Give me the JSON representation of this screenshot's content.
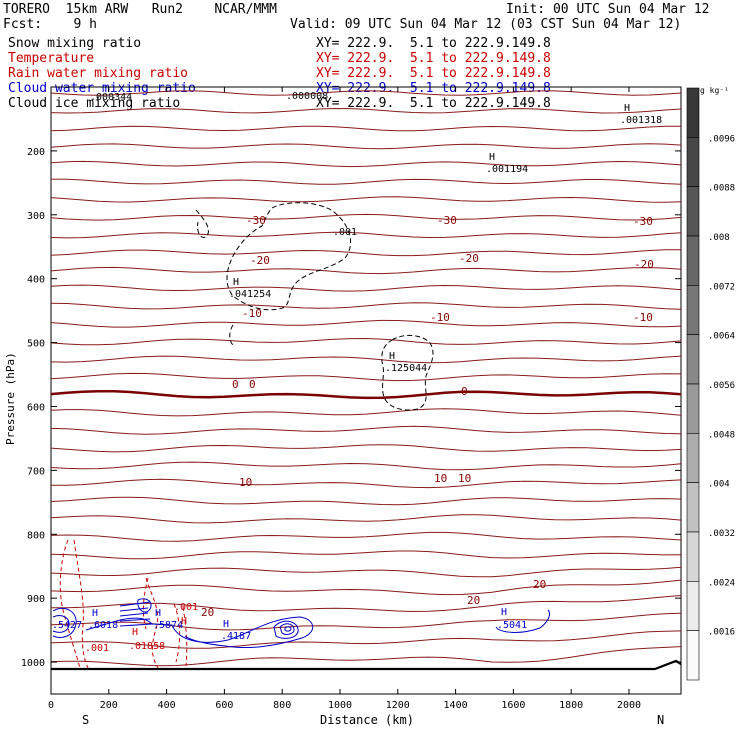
{
  "header": {
    "model": "TORERO  15km ARW   Run2    NCAR/MMM",
    "init": "Init: 00 UTC Sun 04 Mar 12",
    "fcst": "Fcst:    9 h",
    "valid": "Valid: 09 UTC Sun 04 Mar 12 (03 CST Sun 04 Mar 12)"
  },
  "fields": [
    {
      "name": "Snow mixing ratio",
      "xy": "",
      "color": "#000000"
    },
    {
      "name": "Temperature",
      "xy": "XY= 222.9.  5.1 to 222.9.149.8",
      "color": "#cc0000"
    },
    {
      "name": "Rain water mixing ratio",
      "xy": "XY= 222.9.  5.1 to 222.9.149.8",
      "color": "#cc0000"
    },
    {
      "name": "Cloud water mixing ratio",
      "xy": "XY= 222.9.  5.1 to 222.9.149.8",
      "color": "#0000cc"
    },
    {
      "name": "Cloud ice mixing ratio",
      "xy": "XY= 222.9.  5.1 to 222.9.149.8",
      "color": "#000000"
    }
  ],
  "snow_xy": "XY= 222.9.  5.1 to 222.9.149.8",
  "chart_data": {
    "type": "contour cross-section",
    "xlabel": "Distance (km)",
    "ylabel": "Pressure (hPa)",
    "xlim": [
      0,
      2180
    ],
    "ylim": [
      1050,
      100
    ],
    "x_ticks": [
      0,
      200,
      400,
      600,
      800,
      1000,
      1200,
      1400,
      1600,
      1800,
      2000
    ],
    "y_ticks": [
      200,
      300,
      400,
      500,
      600,
      700,
      800,
      900,
      1000
    ],
    "x_endpoints": {
      "left": "S",
      "right": "N"
    },
    "colorbar": {
      "unit": "g kg⁻¹",
      "labels": [
        ".0096",
        ".0088",
        ".008",
        ".0072",
        ".0064",
        ".0056",
        ".0048",
        ".004",
        ".0032",
        ".0024",
        ".0016"
      ],
      "colors": [
        "#383838",
        "#474747",
        "#565656",
        "#666666",
        "#777777",
        "#888888",
        "#9a9a9a",
        "#adadad",
        "#c1c1c1",
        "#d6d6d6",
        "#ececec",
        "#fafafa"
      ]
    },
    "temperature_labels": [
      "-30",
      "-30",
      "-30",
      "-20",
      "-20",
      "-20",
      "-10",
      "-10",
      "-10",
      "0",
      "0",
      "0",
      "10",
      "10",
      "10",
      "20",
      "20",
      "20"
    ],
    "extrema_labels": [
      "H",
      "H",
      "H",
      "H",
      "H",
      "H",
      "H",
      "H",
      "H",
      "H"
    ],
    "cloud_ice_values": [
      ".000344",
      ".000008",
      ".001318",
      ".001194",
      ".041254",
      ".001",
      ".125044"
    ],
    "cloud_water_values": [
      ".6018",
      ".5874",
      ".4187",
      ".5041",
      ".5427"
    ],
    "rain_water_values": [
      ".001",
      ".01858",
      ".001"
    ],
    "temperature_contours_count": 33,
    "zero_isotherm_hPa": 570
  }
}
